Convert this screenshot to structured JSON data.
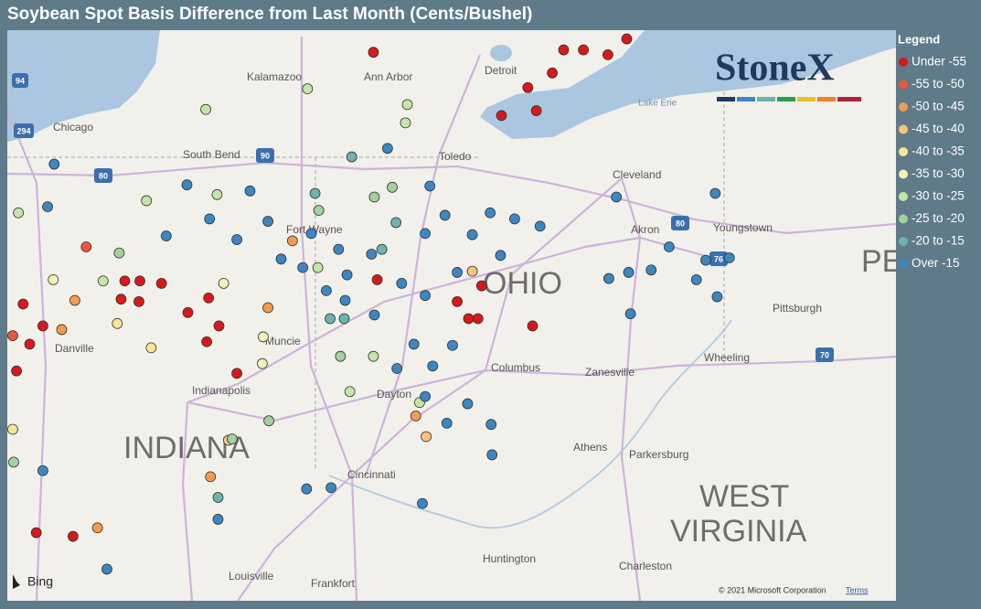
{
  "title": "Soybean Spot Basis Difference from Last Month (Cents/Bushel)",
  "legend": {
    "title": "Legend",
    "items": [
      {
        "label": "Under -55",
        "color": "#d7191c"
      },
      {
        "label": "-55 to -50",
        "color": "#e8583a"
      },
      {
        "label": "-50 to -45",
        "color": "#f39b4e"
      },
      {
        "label": "-45 to -40",
        "color": "#f9c47a"
      },
      {
        "label": "-40 to -35",
        "color": "#f7e59a"
      },
      {
        "label": "-35 to -30",
        "color": "#eef3b6"
      },
      {
        "label": "-30 to -25",
        "color": "#c5e5a6"
      },
      {
        "label": "-25 to -20",
        "color": "#9fd39b"
      },
      {
        "label": "-20 to -15",
        "color": "#6bb3ae"
      },
      {
        "label": "Over -15",
        "color": "#3b87c4"
      }
    ]
  },
  "logo": "StoneX",
  "map": {
    "labels": [
      "Kalamazoo",
      "Ann Arbor",
      "Detroit",
      "Chicago",
      "South Bend",
      "Toledo",
      "Cleveland",
      "Fort Wayne",
      "Akron",
      "Youngstown",
      "OHIO",
      "PE",
      "Pittsburgh",
      "Muncie",
      "Danville",
      "Indianapolis",
      "Dayton",
      "Columbus",
      "Zanesville",
      "Wheeling",
      "INDIANA",
      "Athens",
      "Parkersburg",
      "Cincinnati",
      "WEST",
      "VIRGINIA",
      "Huntington",
      "Charleston",
      "Louisville",
      "Frankfort",
      "Lake Erie"
    ],
    "shields": [
      "94",
      "294",
      "80",
      "90",
      "80",
      "76",
      "70"
    ],
    "attribution": "Bing",
    "copyright": "© 2021 Microsoft Corporation",
    "terms": "Terms"
  },
  "points": [
    [
      -84.19,
      42.56,
      0
    ],
    [
      -82.17,
      42.58,
      0
    ],
    [
      -81.96,
      42.58,
      0
    ],
    [
      -81.7,
      42.54,
      0
    ],
    [
      -81.5,
      42.67,
      0
    ],
    [
      -82.29,
      42.39,
      0
    ],
    [
      -82.55,
      42.27,
      0
    ],
    [
      -82.83,
      42.04,
      0
    ],
    [
      -82.46,
      42.08,
      0
    ],
    [
      -86.83,
      40.68,
      0
    ],
    [
      -86.67,
      40.68,
      0
    ],
    [
      -86.44,
      40.66,
      0
    ],
    [
      -86.87,
      40.53,
      0
    ],
    [
      -86.68,
      40.51,
      0
    ],
    [
      -86.16,
      40.42,
      0
    ],
    [
      -85.94,
      40.54,
      0
    ],
    [
      -85.83,
      40.31,
      0
    ],
    [
      -85.96,
      40.18,
      0
    ],
    [
      -85.64,
      39.92,
      0
    ],
    [
      -87.91,
      40.49,
      0
    ],
    [
      -87.7,
      40.31,
      0
    ],
    [
      -87.84,
      40.16,
      0
    ],
    [
      -87.98,
      39.94,
      0
    ],
    [
      -87.77,
      38.61,
      0
    ],
    [
      -87.38,
      38.58,
      0
    ],
    [
      -84.15,
      40.69,
      0
    ],
    [
      -83.3,
      40.51,
      0
    ],
    [
      -83.08,
      40.37,
      0
    ],
    [
      -83.18,
      40.37,
      0
    ],
    [
      -83.04,
      40.64,
      0
    ],
    [
      -82.5,
      40.31,
      0
    ],
    [
      -87.24,
      40.96,
      1
    ],
    [
      -88.02,
      40.23,
      1
    ],
    [
      -87.5,
      40.28,
      2
    ],
    [
      -87.36,
      40.52,
      2
    ],
    [
      -85.31,
      40.46,
      2
    ],
    [
      -85.05,
      41.01,
      2
    ],
    [
      -85.92,
      39.07,
      2
    ],
    [
      -87.12,
      38.65,
      2
    ],
    [
      -83.74,
      39.57,
      2
    ],
    [
      -83.63,
      39.4,
      3
    ],
    [
      -83.14,
      40.76,
      3
    ],
    [
      -85.73,
      39.37,
      3
    ],
    [
      -86.91,
      40.33,
      4
    ],
    [
      -86.55,
      40.13,
      4
    ],
    [
      -88.02,
      39.46,
      4
    ],
    [
      -85.78,
      40.66,
      5
    ],
    [
      -85.36,
      40.22,
      5
    ],
    [
      -85.37,
      40.0,
      5
    ],
    [
      -87.59,
      40.69,
      5
    ],
    [
      -84.89,
      42.26,
      6
    ],
    [
      -85.97,
      42.09,
      6
    ],
    [
      -85.85,
      41.39,
      6
    ],
    [
      -86.6,
      41.34,
      6
    ],
    [
      -87.06,
      40.68,
      6
    ],
    [
      -83.83,
      42.13,
      6
    ],
    [
      -83.85,
      41.98,
      6
    ],
    [
      -83.7,
      39.68,
      6
    ],
    [
      -84.19,
      40.06,
      6
    ],
    [
      -84.44,
      39.77,
      6
    ],
    [
      -84.78,
      40.79,
      6
    ],
    [
      -87.96,
      41.24,
      6
    ],
    [
      -86.89,
      40.91,
      7
    ],
    [
      -85.3,
      39.53,
      7
    ],
    [
      -85.69,
      39.38,
      7
    ],
    [
      -83.99,
      41.45,
      7
    ],
    [
      -84.77,
      41.26,
      7
    ],
    [
      -84.18,
      41.37,
      7
    ],
    [
      -84.54,
      40.06,
      7
    ],
    [
      -88.01,
      39.19,
      7
    ],
    [
      -84.42,
      41.7,
      8
    ],
    [
      -84.81,
      41.4,
      8
    ],
    [
      -83.95,
      41.16,
      8
    ],
    [
      -84.1,
      40.94,
      8
    ],
    [
      -84.5,
      40.37,
      8
    ],
    [
      -84.65,
      40.37,
      8
    ],
    [
      -85.84,
      38.9,
      8
    ],
    [
      -87.58,
      41.64,
      9
    ],
    [
      -86.17,
      41.47,
      9
    ],
    [
      -85.5,
      41.42,
      9
    ],
    [
      -85.93,
      41.19,
      9
    ],
    [
      -85.31,
      41.17,
      9
    ],
    [
      -86.39,
      41.05,
      9
    ],
    [
      -85.64,
      41.02,
      9
    ],
    [
      -85.17,
      40.86,
      9
    ],
    [
      -84.94,
      40.79,
      9
    ],
    [
      -84.85,
      41.07,
      9
    ],
    [
      -84.56,
      40.94,
      9
    ],
    [
      -84.47,
      40.73,
      9
    ],
    [
      -84.69,
      40.6,
      9
    ],
    [
      -84.49,
      40.52,
      9
    ],
    [
      -84.21,
      40.9,
      9
    ],
    [
      -84.04,
      41.77,
      9
    ],
    [
      -83.59,
      41.46,
      9
    ],
    [
      -83.43,
      41.22,
      9
    ],
    [
      -83.64,
      41.07,
      9
    ],
    [
      -83.14,
      41.06,
      9
    ],
    [
      -83.3,
      40.75,
      9
    ],
    [
      -82.84,
      40.89,
      9
    ],
    [
      -82.95,
      41.24,
      9
    ],
    [
      -82.69,
      41.19,
      9
    ],
    [
      -82.42,
      41.13,
      9
    ],
    [
      -81.61,
      41.37,
      9
    ],
    [
      -80.56,
      41.4,
      9
    ],
    [
      -81.05,
      40.96,
      9
    ],
    [
      -80.66,
      40.85,
      9
    ],
    [
      -80.41,
      40.87,
      9
    ],
    [
      -80.76,
      40.69,
      9
    ],
    [
      -80.54,
      40.55,
      9
    ],
    [
      -81.46,
      40.41,
      9
    ],
    [
      -81.48,
      40.75,
      9
    ],
    [
      -81.24,
      40.77,
      9
    ],
    [
      -81.69,
      40.7,
      9
    ],
    [
      -83.64,
      40.56,
      9
    ],
    [
      -83.89,
      40.66,
      9
    ],
    [
      -84.18,
      40.4,
      9
    ],
    [
      -83.94,
      39.96,
      9
    ],
    [
      -83.76,
      40.16,
      9
    ],
    [
      -83.56,
      39.98,
      9
    ],
    [
      -83.35,
      40.15,
      9
    ],
    [
      -83.19,
      39.67,
      9
    ],
    [
      -83.64,
      39.73,
      9
    ],
    [
      -83.41,
      39.51,
      9
    ],
    [
      -82.94,
      39.5,
      9
    ],
    [
      -82.93,
      39.25,
      9
    ],
    [
      -83.67,
      38.85,
      9
    ],
    [
      -84.64,
      38.98,
      9
    ],
    [
      -84.9,
      38.97,
      9
    ],
    [
      -85.84,
      38.72,
      9
    ],
    [
      -87.7,
      39.12,
      9
    ],
    [
      -87.02,
      38.31,
      9
    ],
    [
      -87.65,
      41.29,
      9
    ]
  ]
}
